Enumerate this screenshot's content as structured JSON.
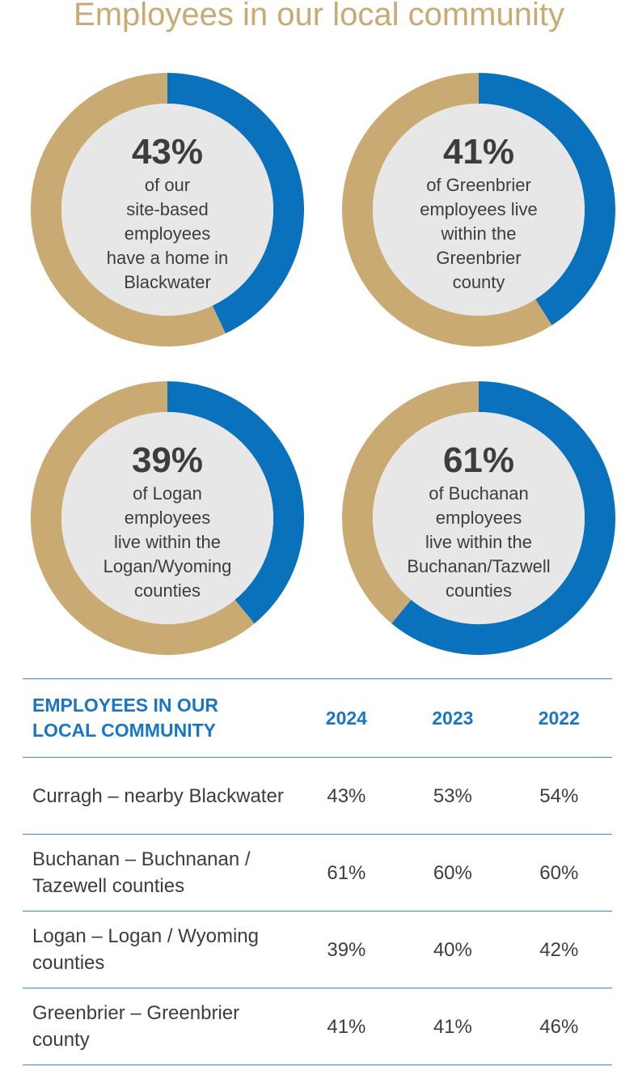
{
  "title": "Employees in our local community",
  "colors": {
    "accent_blue": "#0a72bd",
    "accent_gold": "#c9aa72",
    "inner_fill": "#e7e7e7",
    "rule": "#3a8fca"
  },
  "chart_data": [
    {
      "type": "pie",
      "value_label": "43%",
      "values": [
        43,
        57
      ],
      "description": [
        "of our",
        "site-based",
        "employees",
        "have a home in",
        "Blackwater"
      ]
    },
    {
      "type": "pie",
      "value_label": "41%",
      "values": [
        41,
        59
      ],
      "description": [
        "of Greenbrier",
        "employees live",
        "within the",
        "Greenbrier",
        "county"
      ]
    },
    {
      "type": "pie",
      "value_label": "39%",
      "values": [
        39,
        61
      ],
      "description": [
        "of Logan",
        "employees",
        "live within the",
        "Logan/Wyoming",
        "counties"
      ]
    },
    {
      "type": "pie",
      "value_label": "61%",
      "values": [
        61,
        39
      ],
      "description": [
        "of Buchanan",
        "employees",
        "live within the",
        "Buchanan/Tazwell",
        "counties"
      ]
    }
  ],
  "table": {
    "headers": [
      "EMPLOYEES IN OUR LOCAL COMMUNITY",
      "2024",
      "2023",
      "2022"
    ],
    "rows": [
      {
        "label": "Curragh – nearby Blackwater",
        "values": [
          "43%",
          "53%",
          "54%"
        ]
      },
      {
        "label": "Buchanan – Buchnanan / Tazewell counties",
        "values": [
          "61%",
          "60%",
          "60%"
        ]
      },
      {
        "label": "Logan – Logan / Wyoming counties",
        "values": [
          "39%",
          "40%",
          "42%"
        ]
      },
      {
        "label": "Greenbrier – Greenbrier county",
        "values": [
          "41%",
          "41%",
          "46%"
        ]
      }
    ]
  }
}
